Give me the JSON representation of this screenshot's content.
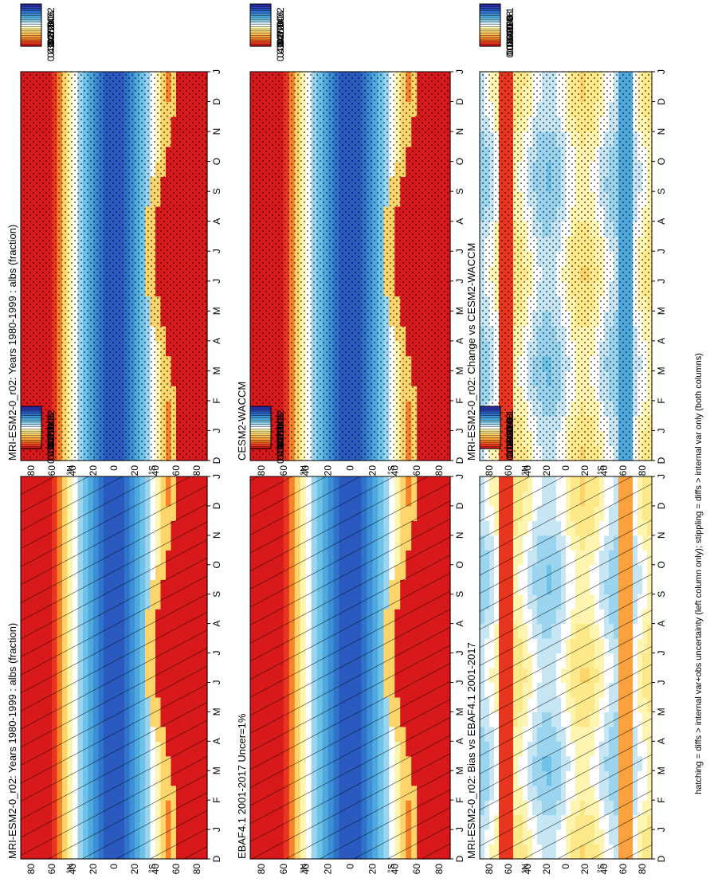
{
  "footer_note": "hatching = diffs > internal var+obs uncertainty (left column only); stippling = diffs > internal var only (both columns)",
  "chart_data": [
    {
      "type": "heatmap",
      "title": "MRI-ESM2-0_r02: Years 1980-1999 : albs (fraction)",
      "x_ticks": [
        "D",
        "J",
        "F",
        "M",
        "A",
        "M",
        "J",
        "J",
        "A",
        "S",
        "O",
        "N",
        "D",
        "J"
      ],
      "y_ticks": [
        "80",
        "60",
        "40",
        "20",
        "0",
        "20",
        "40",
        "60",
        "80"
      ],
      "y_label_north": "°N",
      "y_label_south": "°S",
      "kind": "albedo",
      "overlay": "hatch",
      "colorbar_labels": [
        "0.42",
        "0.38",
        "0.34",
        "0.3",
        "0.26",
        "0.22",
        "0.18",
        "0.14",
        "0.1",
        "0.06",
        "0.02"
      ]
    },
    {
      "type": "heatmap",
      "title": "MRI-ESM2-0_r02: Years 1980-1999 : albs (fraction)",
      "x_ticks": [
        "D",
        "J",
        "F",
        "M",
        "A",
        "M",
        "J",
        "J",
        "A",
        "S",
        "O",
        "N",
        "D",
        "J"
      ],
      "y_ticks": [
        "80",
        "60",
        "40",
        "20",
        "0",
        "20",
        "40",
        "60",
        "80"
      ],
      "y_label_north": "°N",
      "y_label_south": "°S",
      "kind": "albedo",
      "overlay": "stipple",
      "colorbar_labels": [
        "0.42",
        "0.38",
        "0.34",
        "0.3",
        "0.26",
        "0.22",
        "0.18",
        "0.14",
        "0.1",
        "0.06",
        "0.02"
      ]
    },
    {
      "type": "heatmap",
      "title": "EBAF4.1 2001-2017 Uncer=1%",
      "x_ticks": [
        "D",
        "J",
        "F",
        "M",
        "A",
        "M",
        "J",
        "J",
        "A",
        "S",
        "O",
        "N",
        "D",
        "J"
      ],
      "y_ticks": [
        "80",
        "60",
        "40",
        "20",
        "0",
        "20",
        "40",
        "60",
        "80"
      ],
      "y_label_north": "°N",
      "y_label_south": "°S",
      "kind": "albedo",
      "overlay": "hatch",
      "colorbar_labels": [
        "0.42",
        "0.38",
        "0.34",
        "0.3",
        "0.26",
        "0.22",
        "0.18",
        "0.14",
        "0.1",
        "0.06",
        "0.02"
      ]
    },
    {
      "type": "heatmap",
      "title": "CESM2-WACCM",
      "x_ticks": [
        "D",
        "J",
        "F",
        "M",
        "A",
        "M",
        "J",
        "J",
        "A",
        "S",
        "O",
        "N",
        "D",
        "J"
      ],
      "y_ticks": [
        "80",
        "60",
        "40",
        "20",
        "0",
        "20",
        "40",
        "60",
        "80"
      ],
      "y_label_north": "°N",
      "y_label_south": "°S",
      "kind": "albedo",
      "overlay": "stipple",
      "colorbar_labels": [
        "0.42",
        "0.38",
        "0.34",
        "0.3",
        "0.26",
        "0.22",
        "0.18",
        "0.14",
        "0.1",
        "0.06",
        "0.02"
      ]
    },
    {
      "type": "heatmap",
      "title": "MRI-ESM2-0_r02: Bias vs EBAF4.1 2001-2017",
      "x_ticks": [
        "D",
        "J",
        "F",
        "M",
        "A",
        "M",
        "J",
        "J",
        "A",
        "S",
        "O",
        "N",
        "D",
        "J"
      ],
      "y_ticks": [
        "80",
        "60",
        "40",
        "20",
        "0",
        "20",
        "40",
        "60",
        "80"
      ],
      "y_label_north": "°N",
      "y_label_south": "°S",
      "kind": "diff",
      "overlay": "hatch",
      "colorbar_labels": [
        "0.1",
        "0.08",
        "0.06",
        "0.04",
        "0.02",
        "0",
        "-0.02",
        "-0.04",
        "-0.06",
        "-0.08",
        "-0.1"
      ]
    },
    {
      "type": "heatmap",
      "title": "MRI-ESM2-0_r02: Change vs CESM2-WACCM",
      "x_ticks": [
        "D",
        "J",
        "F",
        "M",
        "A",
        "M",
        "J",
        "J",
        "A",
        "S",
        "O",
        "N",
        "D",
        "J"
      ],
      "y_ticks": [
        "80",
        "60",
        "40",
        "20",
        "0",
        "20",
        "40",
        "60",
        "80"
      ],
      "y_label_north": "°N",
      "y_label_south": "°S",
      "kind": "diff",
      "overlay": "stipple",
      "colorbar_labels": [
        "0.1",
        "0.08",
        "0.06",
        "0.04",
        "0.02",
        "0",
        "-0.02",
        "-0.04",
        "-0.06",
        "-0.08",
        "-0.1"
      ]
    }
  ],
  "colors": {
    "albedo_scale": [
      "#d7191c",
      "#e8361e",
      "#f25c22",
      "#f6822a",
      "#fba13d",
      "#fdbd52",
      "#fdd56b",
      "#fde98a",
      "#fef6b0",
      "#ffffff",
      "#c6e6f4",
      "#9ad4ee",
      "#6ec2e8",
      "#4fa9de",
      "#3d8fd5",
      "#2f73cb",
      "#2a59c0",
      "#2840b3",
      "#2a2aa8"
    ],
    "diff_scale": [
      "#d7191c",
      "#e8361e",
      "#f25c22",
      "#f6822a",
      "#fba13d",
      "#fdbd52",
      "#fdd56b",
      "#fde98a",
      "#fef6b0",
      "#ffffff",
      "#c6e6f4",
      "#9ad4ee",
      "#6ec2e8",
      "#4fa9de",
      "#3d8fd5",
      "#2f73cb",
      "#2a59c0",
      "#2840b3",
      "#2a2aa8"
    ]
  }
}
